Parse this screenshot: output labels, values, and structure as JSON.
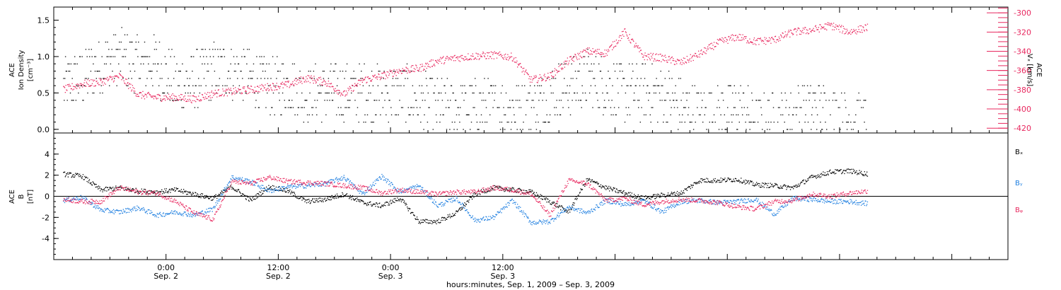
{
  "colors": {
    "black": "#000000",
    "pink": "#e8285f",
    "blue": "#1f7fe0"
  },
  "chart_data": [
    {
      "type": "scatter",
      "panel": "density-velocity",
      "ylabel_lines": [
        "ACE",
        "Ion Density",
        "[cm⁻³]"
      ],
      "y2label_lines": [
        "ACE",
        "Vₓ [km/s]"
      ],
      "ylim": [
        -0.05,
        1.68
      ],
      "y2lim": [
        -425,
        -294
      ],
      "yticks": [
        0.0,
        0.5,
        1.0,
        1.5
      ],
      "ytick_labels": [
        "0.0",
        "0.5",
        "1.0",
        "1.5"
      ],
      "y2ticks": [
        -420,
        -400,
        -380,
        -360,
        -340,
        -320,
        -300
      ],
      "y2tick_labels": [
        "-420",
        "-400",
        "-380",
        "-360",
        "-340",
        "-320",
        "-300"
      ],
      "series": [
        {
          "color": "#000000",
          "axis": "left",
          "x": [
            -11,
            -9,
            -7,
            -5,
            -3,
            -1,
            1,
            3,
            5,
            7,
            9,
            11,
            13,
            15,
            17,
            19,
            21,
            23,
            25,
            27,
            29,
            31,
            33,
            35,
            37,
            39,
            41,
            43,
            45,
            47,
            49,
            51,
            53,
            55,
            57,
            59,
            61,
            63,
            65,
            67,
            69,
            71,
            73,
            75
          ],
          "y": [
            0.6,
            0.7,
            0.9,
            1.0,
            0.9,
            0.9,
            0.6,
            0.7,
            0.8,
            0.8,
            0.7,
            0.6,
            0.6,
            0.5,
            0.5,
            0.5,
            0.5,
            0.5,
            0.5,
            0.4,
            0.3,
            0.3,
            0.3,
            0.3,
            0.3,
            0.3,
            0.5,
            0.6,
            0.7,
            0.6,
            0.5,
            0.5,
            0.5,
            0.3,
            0.2,
            0.2,
            0.3,
            0.1,
            0.1,
            0.2,
            0.3,
            0.2,
            0.1,
            0.1
          ]
        },
        {
          "color": "#e8285f",
          "axis": "right",
          "x": [
            -11,
            -9,
            -7,
            -5,
            -3,
            -1,
            1,
            3,
            5,
            7,
            9,
            11,
            13,
            15,
            17,
            19,
            21,
            23,
            25,
            27,
            29,
            31,
            33,
            35,
            37,
            39,
            41,
            43,
            45,
            47,
            49,
            51,
            53,
            55,
            57,
            59,
            61,
            63,
            65,
            67,
            69,
            71,
            73,
            75
          ],
          "y": [
            -380,
            -374,
            -372,
            -366,
            -385,
            -388,
            -388,
            -390,
            -384,
            -382,
            -380,
            -377,
            -375,
            -368,
            -372,
            -385,
            -370,
            -366,
            -360,
            -358,
            -350,
            -347,
            -345,
            -344,
            -346,
            -370,
            -366,
            -350,
            -340,
            -342,
            -320,
            -345,
            -347,
            -352,
            -343,
            -331,
            -325,
            -330,
            -328,
            -320,
            -318,
            -313,
            -320,
            -315
          ]
        }
      ]
    },
    {
      "type": "scatter",
      "panel": "imf",
      "ylabel_lines": [
        "ACE",
        "B",
        "[nT]"
      ],
      "ylim": [
        -6,
        6
      ],
      "yticks": [
        -4,
        -2,
        0,
        2,
        4
      ],
      "ytick_labels": [
        "-4",
        "-2",
        "0",
        "2",
        "4"
      ],
      "zero_line": true,
      "series": [
        {
          "name": "Bₓ",
          "color": "#000000",
          "x": [
            -11,
            -9,
            -7,
            -5,
            -3,
            -1,
            1,
            3,
            5,
            7,
            9,
            11,
            13,
            15,
            17,
            19,
            21,
            23,
            25,
            27,
            29,
            31,
            33,
            35,
            37,
            39,
            41,
            43,
            45,
            47,
            49,
            51,
            53,
            55,
            57,
            59,
            61,
            63,
            65,
            67,
            69,
            71,
            73,
            75
          ],
          "y": [
            2.1,
            1.9,
            0.6,
            0.8,
            0.5,
            0.4,
            0.6,
            0.2,
            -0.2,
            0.9,
            -0.4,
            0.9,
            0.5,
            -0.5,
            -0.3,
            0.2,
            -0.6,
            -0.9,
            -0.2,
            -2.4,
            -2.4,
            -1.6,
            0.2,
            0.8,
            0.6,
            0.4,
            -0.5,
            -1.5,
            1.6,
            0.8,
            0.3,
            -0.2,
            0.1,
            0.3,
            1.5,
            1.5,
            1.6,
            1.1,
            1.0,
            0.8,
            1.8,
            2.3,
            2.4,
            2.1
          ]
        },
        {
          "name": "Bᵧ",
          "color": "#1f7fe0",
          "x": [
            -11,
            -9,
            -7,
            -5,
            -3,
            -1,
            1,
            3,
            5,
            7,
            9,
            11,
            13,
            15,
            17,
            19,
            21,
            23,
            25,
            27,
            29,
            31,
            33,
            35,
            37,
            39,
            41,
            43,
            45,
            47,
            49,
            51,
            53,
            55,
            57,
            59,
            61,
            63,
            65,
            67,
            69,
            71,
            73,
            75
          ],
          "y": [
            -0.4,
            -0.1,
            -1.3,
            -1.5,
            -1.1,
            -1.8,
            -1.5,
            -1.8,
            -1.2,
            1.8,
            1.4,
            0.5,
            0.9,
            1.0,
            1.2,
            1.8,
            0.2,
            1.9,
            0.4,
            1.0,
            -0.9,
            -0.2,
            -2.3,
            -2.0,
            -0.4,
            -2.5,
            -2.4,
            -1.0,
            -1.6,
            -0.4,
            -0.8,
            -0.4,
            -1.5,
            -0.5,
            -0.4,
            -0.6,
            -0.5,
            -0.3,
            -1.7,
            -0.2,
            -0.3,
            -0.5,
            -0.5,
            -0.7
          ]
        },
        {
          "name": "Bᵩ",
          "color": "#e8285f",
          "x": [
            -11,
            -9,
            -7,
            -5,
            -3,
            -1,
            1,
            3,
            5,
            7,
            9,
            11,
            13,
            15,
            17,
            19,
            21,
            23,
            25,
            27,
            29,
            31,
            33,
            35,
            37,
            39,
            41,
            43,
            45,
            47,
            49,
            51,
            53,
            55,
            57,
            59,
            61,
            63,
            65,
            67,
            69,
            71,
            73,
            75
          ],
          "y": [
            -0.3,
            -0.5,
            -0.5,
            0.8,
            0.4,
            0.3,
            -0.5,
            -1.6,
            -2.2,
            1.4,
            1.2,
            1.8,
            1.4,
            1.3,
            1.2,
            1.0,
            0.8,
            0.3,
            0.6,
            0.4,
            0.2,
            0.4,
            0.4,
            0.8,
            0.6,
            0.2,
            -1.8,
            1.5,
            1.2,
            -0.4,
            -0.2,
            -0.8,
            -0.5,
            -0.3,
            -0.4,
            -0.6,
            -1.0,
            -1.2,
            -0.5,
            -0.4,
            0.2,
            0.0,
            0.3,
            0.5
          ]
        }
      ]
    }
  ],
  "x_axis": {
    "range": [
      -12,
      90
    ],
    "ticks": [
      {
        "x": 0,
        "time": "0:00",
        "date": "Sep. 2"
      },
      {
        "x": 12,
        "time": "12:00",
        "date": "Sep. 2"
      },
      {
        "x": 24,
        "time": "0:00",
        "date": "Sep. 3"
      },
      {
        "x": 36,
        "time": "12:00",
        "date": "Sep. 3"
      }
    ],
    "label": "hours:minutes, Sep.  1, 2009 – Sep.  3, 2009"
  }
}
